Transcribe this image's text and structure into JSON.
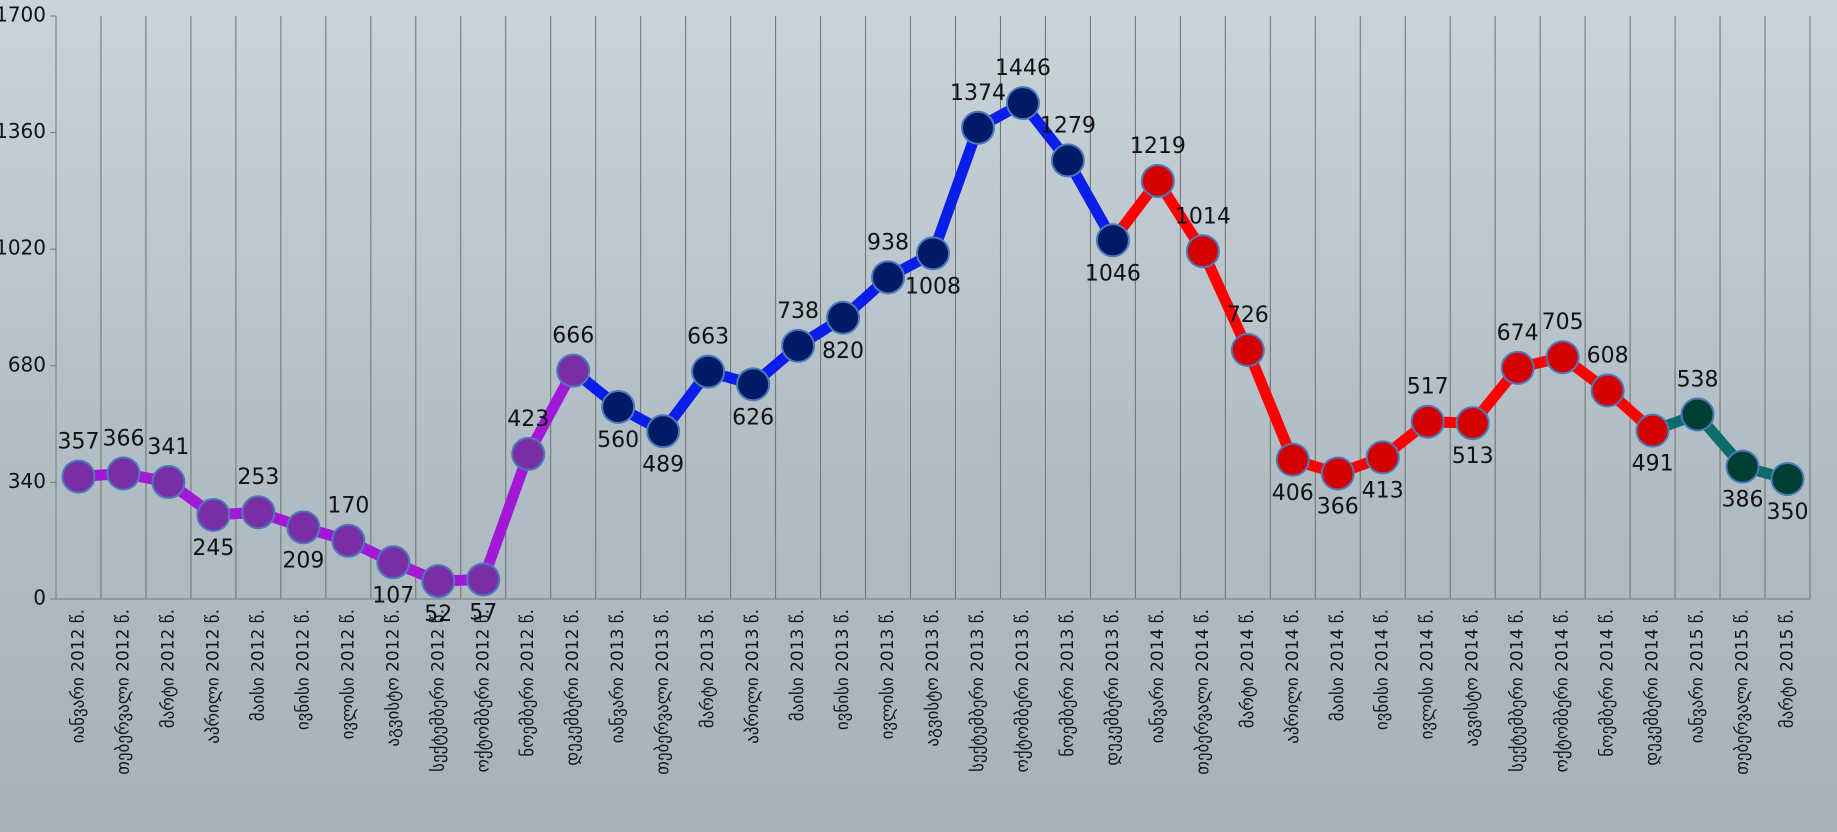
{
  "chart_data": {
    "type": "line",
    "categories": [
      "იანვარი 2012 წ.",
      "თებერვალი 2012 წ.",
      "მარტი 2012 წ.",
      "აპრილი 2012 წ.",
      "მაისი 2012 წ.",
      "ივნისი 2012 წ.",
      "ივლისი 2012 წ.",
      "აგვისტო 2012 წ.",
      "სექტემბერი 2012 წ.",
      "ოქტომბერი 2012 წ.",
      "ნოემბერი 2012 წ.",
      "დეკემბერი 2012 წ.",
      "იანვარი 2013 წ.",
      "თებერვალი 2013 წ.",
      "მარტი 2013 წ.",
      "აპრილი 2013 წ.",
      "მაისი 2013 წ.",
      "ივნისი 2013 წ.",
      "ივლისი 2013 წ.",
      "აგვისტო 2013 წ.",
      "სექტემბერი 2013 წ.",
      "ოქტომბერი 2013 წ.",
      "ნოემბერი 2013 წ.",
      "დეკემბერი 2013 წ.",
      "იანვარი 2014 წ.",
      "თებერვალი 2014 წ.",
      "მარტი 2014 წ.",
      "აპრილი 2014 წ.",
      "მაისი 2014 წ.",
      "ივნისი 2014 წ.",
      "ივლისი 2014 წ.",
      "აგვისტო 2014 წ.",
      "სექტემბერი 2014 წ.",
      "ოქტომბერი 2014 წ.",
      "ნოემბერი 2014 წ.",
      "დეკემბერი 2014 წ.",
      "იანვარი 2015 წ.",
      "თებერვალი 2015 წ.",
      "მარტი 2015 წ."
    ],
    "series": [
      {
        "color": "#a318d6",
        "marker_color": "#7a2ea6",
        "values": [
          357,
          366,
          341,
          245,
          253,
          209,
          170,
          107,
          52,
          57,
          423,
          666,
          null,
          null,
          null,
          null,
          null,
          null,
          null,
          null,
          null,
          null,
          null,
          null,
          null,
          null,
          null,
          null,
          null,
          null,
          null,
          null,
          null,
          null,
          null,
          null,
          null,
          null,
          null
        ]
      },
      {
        "color": "#0b1de8",
        "marker_color": "#001a66",
        "values": [
          null,
          null,
          null,
          null,
          null,
          null,
          null,
          null,
          null,
          null,
          null,
          null,
          560,
          489,
          663,
          626,
          738,
          820,
          938,
          1008,
          1374,
          1446,
          1279,
          1046,
          null,
          null,
          null,
          null,
          null,
          null,
          null,
          null,
          null,
          null,
          null,
          null,
          null,
          null,
          null
        ]
      },
      {
        "color": "#ff0000",
        "marker_color": "#d40000",
        "values": [
          null,
          null,
          null,
          null,
          null,
          null,
          null,
          null,
          null,
          null,
          null,
          null,
          null,
          null,
          null,
          null,
          null,
          null,
          null,
          null,
          null,
          null,
          null,
          null,
          1219,
          1014,
          726,
          406,
          366,
          413,
          517,
          513,
          674,
          705,
          608,
          491,
          null,
          null,
          null
        ]
      },
      {
        "color": "#0d6b6b",
        "marker_color": "#003d33",
        "values": [
          null,
          null,
          null,
          null,
          null,
          null,
          null,
          null,
          null,
          null,
          null,
          null,
          null,
          null,
          null,
          null,
          null,
          null,
          null,
          null,
          null,
          null,
          null,
          null,
          null,
          null,
          null,
          null,
          null,
          null,
          null,
          null,
          null,
          null,
          null,
          null,
          538,
          386,
          350
        ]
      }
    ],
    "ylim": [
      0,
      1700
    ],
    "yticks": [
      0,
      340,
      680,
      1020,
      1360,
      1700
    ],
    "grid": true
  }
}
